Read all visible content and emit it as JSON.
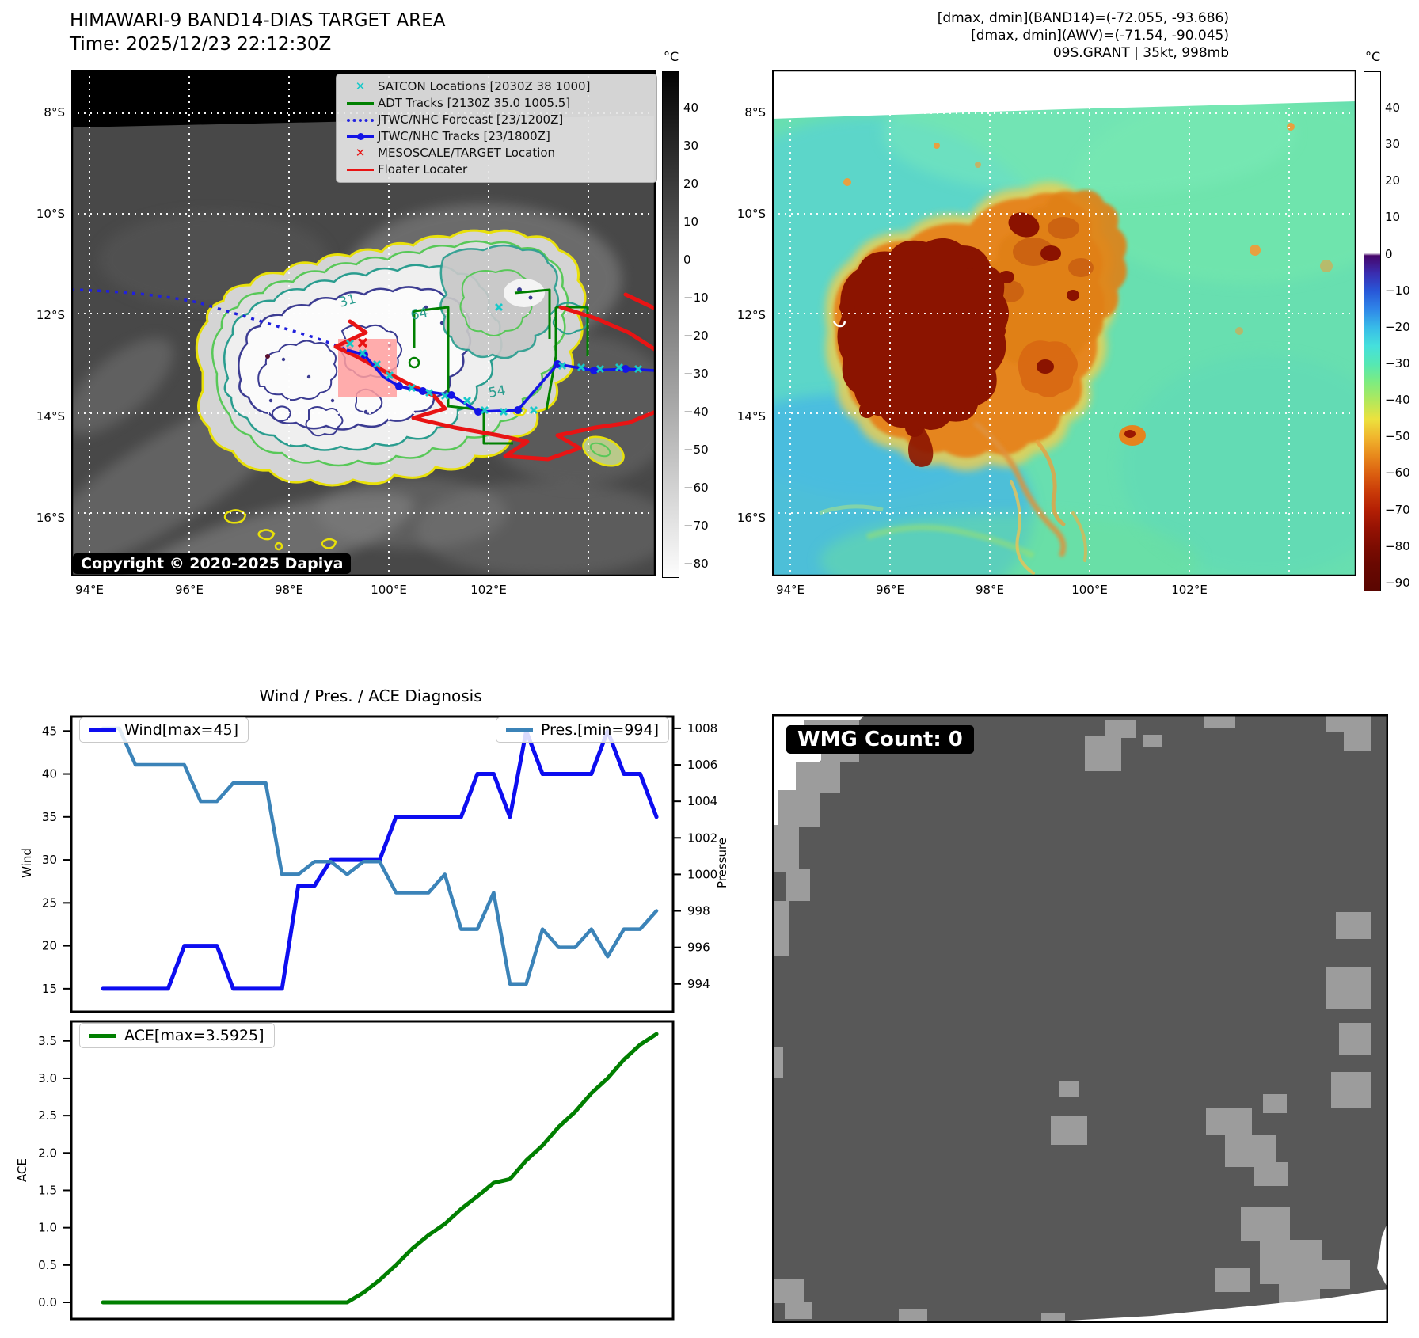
{
  "band14": {
    "title": "HIMAWARI-9 BAND14-DIAS TARGET AREA",
    "time": "Time: 2025/12/23 22:12:30Z",
    "copyright": "Copyright © 2020-2025 Dapiya",
    "legend": {
      "satcon": "SATCON Locations [2030Z 38 1000]",
      "adt": "ADT Tracks [2130Z 35.0 1005.5]",
      "forecast": "JTWC/NHC Forecast [23/1200Z]",
      "tracks": "JTWC/NHC Tracks [23/1800Z]",
      "meso": "MESOSCALE/TARGET Location",
      "floater": "Floater Locater"
    },
    "lat_ticks": [
      "8°S",
      "10°S",
      "12°S",
      "14°S",
      "16°S"
    ],
    "lon_ticks": [
      "94°E",
      "96°E",
      "98°E",
      "100°E",
      "102°E"
    ],
    "colorbar_unit": "°C",
    "colorbar_ticks": [
      "40",
      "30",
      "20",
      "10",
      "0",
      "−10",
      "−20",
      "−30",
      "−40",
      "−50",
      "−60",
      "−70",
      "−80"
    ],
    "contour_labels": [
      "31",
      "64",
      "54"
    ]
  },
  "awv": {
    "header_line1": "[dmax, dmin](BAND14)=(-72.055, -93.686)",
    "header_line2": "[dmax, dmin](AWV)=(-71.54, -90.045)",
    "header_line3": "09S.GRANT | 35kt, 998mb",
    "lat_ticks": [
      "8°S",
      "10°S",
      "12°S",
      "14°S",
      "16°S"
    ],
    "lon_ticks": [
      "94°E",
      "96°E",
      "98°E",
      "100°E",
      "102°E"
    ],
    "colorbar_unit": "°C",
    "colorbar_ticks": [
      "40",
      "30",
      "20",
      "10",
      "0",
      "−10",
      "−20",
      "−30",
      "−40",
      "−50",
      "−60",
      "−70",
      "−80",
      "−90"
    ]
  },
  "wmg": {
    "count_label": "WMG Count: 0"
  },
  "chart_data": [
    {
      "type": "line",
      "title": "Wind / Pres. / ACE Diagnosis",
      "x_points": 35,
      "series": [
        {
          "name": "Wind[max=45]",
          "axis": "left",
          "color": "#0d0df0",
          "linewidth": 5,
          "values": [
            15,
            15,
            15,
            15,
            15,
            20,
            20,
            20,
            15,
            15,
            15,
            15,
            27,
            27,
            30,
            30,
            30,
            30,
            35,
            35,
            35,
            35,
            35,
            40,
            40,
            35,
            45,
            40,
            40,
            40,
            40,
            45,
            40,
            40,
            35
          ]
        },
        {
          "name": "Pres.[min=994]",
          "axis": "right",
          "color": "#3b83b8",
          "linewidth": 4.5,
          "values": [
            1008,
            1008,
            1006,
            1006,
            1006,
            1006,
            1004,
            1004,
            1005,
            1005,
            1005,
            1000,
            1000,
            1000.7,
            1000.7,
            1000,
            1000.7,
            1000.7,
            999,
            999,
            999,
            1000,
            997,
            997,
            999,
            994,
            994,
            997,
            996,
            996,
            997,
            995.5,
            997,
            997,
            998
          ]
        }
      ],
      "left_axis": {
        "label": "Wind",
        "ticks": [
          "15",
          "20",
          "25",
          "30",
          "35",
          "40",
          "45"
        ],
        "lim": [
          12.5,
          46.5
        ]
      },
      "right_axis": {
        "label": "Pressure",
        "ticks": [
          "994",
          "996",
          "998",
          "1000",
          "1002",
          "1004",
          "1006",
          "1008"
        ],
        "lim": [
          992.56,
          1008.56
        ]
      },
      "grid": false,
      "legend_position": "top-left / top-right"
    },
    {
      "type": "line",
      "title": "",
      "x_points": 35,
      "series": [
        {
          "name": "ACE[max=3.5925]",
          "axis": "left",
          "color": "#007f00",
          "linewidth": 5,
          "values": [
            0,
            0,
            0,
            0,
            0,
            0,
            0,
            0,
            0,
            0,
            0,
            0,
            0,
            0,
            0,
            0,
            0.13,
            0.3,
            0.5,
            0.72,
            0.9,
            1.05,
            1.25,
            1.42,
            1.6,
            1.65,
            1.9,
            2.1,
            2.35,
            2.55,
            2.8,
            3.0,
            3.25,
            3.45,
            3.5925
          ]
        }
      ],
      "left_axis": {
        "label": "ACE",
        "ticks": [
          "0.0",
          "0.5",
          "1.0",
          "1.5",
          "2.0",
          "2.5",
          "3.0",
          "3.5"
        ],
        "lim": [
          -0.18,
          3.72
        ]
      },
      "grid": false,
      "legend_position": "top-left"
    }
  ]
}
